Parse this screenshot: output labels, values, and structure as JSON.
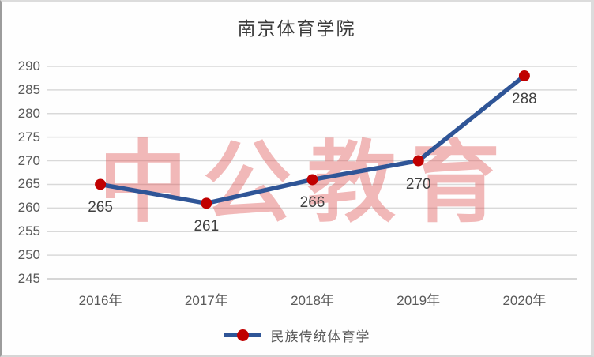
{
  "chart_data": {
    "type": "line",
    "title": "南京体育学院",
    "categories": [
      "2016年",
      "2017年",
      "2018年",
      "2019年",
      "2020年"
    ],
    "series": [
      {
        "name": "民族传统体育学",
        "values": [
          265,
          261,
          266,
          270,
          288
        ]
      }
    ],
    "ylim": [
      245,
      290
    ],
    "ytick_step": 5,
    "grid": "horizontal",
    "legend_position": "bottom",
    "data_labels": "below-points",
    "colors": {
      "line": "#2f5597",
      "marker": "#c00000",
      "gridline": "#d9d9d9",
      "axis_bottom_line": "#c8c8c8",
      "axis_text": "#595959",
      "data_label_text": "#404040",
      "title_text": "#3b3b3b",
      "watermark_text": "rgba(222,80,80,0.40)"
    }
  },
  "watermark": {
    "text": "中公教育"
  }
}
